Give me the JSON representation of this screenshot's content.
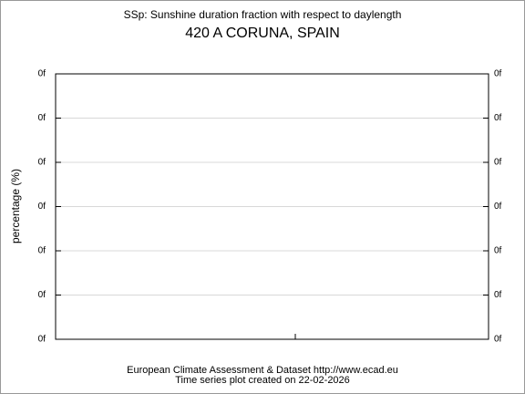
{
  "chart_data": {
    "type": "line",
    "title": "SSp: Sunshine duration fraction with respect to daylength",
    "subtitle": "420 A CORUNA, SPAIN",
    "ylabel": "percentage (%)",
    "y_tick_labels": [
      "0f",
      "0f",
      "0f",
      "0f",
      "0f",
      "0f",
      "0f"
    ],
    "y2_tick_labels": [
      "0f",
      "0f",
      "0f",
      "0f",
      "0f",
      "0f",
      "0f"
    ],
    "grid": true,
    "footer": [
      "European Climate Assessment & Dataset  http://www.ecad.eu",
      "Time series plot created on 22-02-2026"
    ]
  }
}
